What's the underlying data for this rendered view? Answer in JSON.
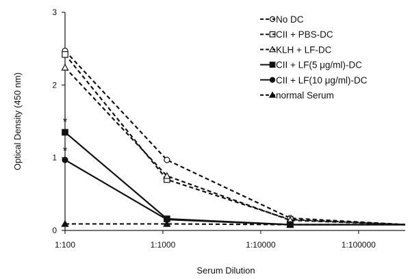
{
  "chart_data": {
    "type": "line",
    "title": "",
    "xlabel": "Serum Dilution",
    "ylabel": "Optical Density (450 nm)",
    "x_scale": "log",
    "x_ticks": [
      100,
      1000,
      10000,
      100000
    ],
    "x_tick_labels": [
      "1:100",
      "1:1000",
      "1:10000",
      "1:100000"
    ],
    "xlim": [
      100,
      300000
    ],
    "ylim": [
      0,
      3
    ],
    "y_ticks": [
      0,
      1,
      2,
      3
    ],
    "y_tick_labels": [
      "0",
      "1",
      "2",
      "3"
    ],
    "grid": false,
    "legend_position": "top-right",
    "series": [
      {
        "name": "No DC",
        "marker": "open-circle",
        "line": "dashed",
        "x": [
          100,
          1100,
          20000,
          300000
        ],
        "y": [
          2.47,
          0.97,
          0.17,
          0.08
        ]
      },
      {
        "name": "CII + PBS-DC",
        "marker": "open-square",
        "line": "dashed",
        "x": [
          100,
          1100,
          20000,
          300000
        ],
        "y": [
          2.42,
          0.7,
          0.15,
          0.08
        ]
      },
      {
        "name": "KLH + LF-DC",
        "marker": "open-triangle",
        "line": "dashed",
        "x": [
          100,
          1100,
          20000,
          300000
        ],
        "y": [
          2.24,
          0.75,
          0.14,
          0.08
        ]
      },
      {
        "name": "CII + LF(5 μg/ml)-DC",
        "marker": "filled-square",
        "line": "solid",
        "x": [
          100,
          1100,
          20000,
          300000
        ],
        "y": [
          1.35,
          0.16,
          0.08,
          0.08
        ]
      },
      {
        "name": "CII + LF(10 μg/ml)-DC",
        "marker": "filled-circle",
        "line": "solid",
        "x": [
          100,
          1100,
          20000,
          300000
        ],
        "y": [
          0.97,
          0.15,
          0.08,
          0.08
        ]
      },
      {
        "name": "normal Serum",
        "marker": "filled-triangle",
        "line": "dashed",
        "x": [
          100,
          1100,
          20000,
          300000
        ],
        "y": [
          0.09,
          0.09,
          0.08,
          0.08
        ]
      }
    ],
    "annotations": [
      {
        "text": "*",
        "x": 100,
        "y": 1.5
      },
      {
        "text": "*",
        "x": 100,
        "y": 1.1
      }
    ]
  }
}
